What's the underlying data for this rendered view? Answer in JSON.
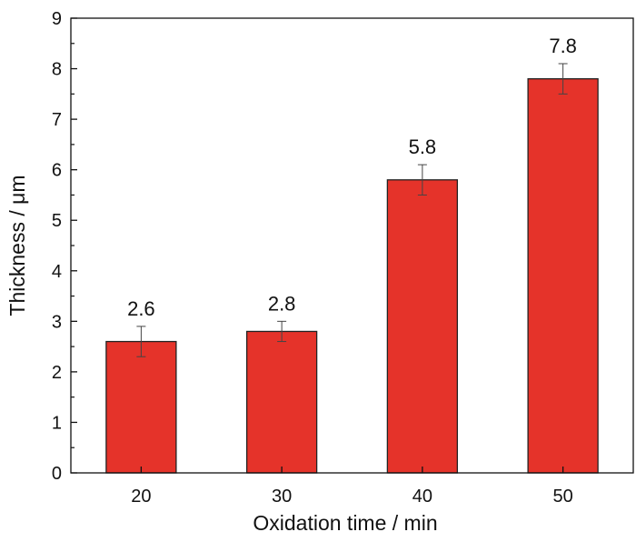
{
  "chart_data": {
    "type": "bar",
    "title": "",
    "xlabel": "Oxidation time / min",
    "ylabel": "Thickness / μm",
    "categories": [
      "20",
      "30",
      "40",
      "50"
    ],
    "values": [
      2.6,
      2.8,
      5.8,
      7.8
    ],
    "errors": [
      0.3,
      0.2,
      0.3,
      0.3
    ],
    "data_labels": [
      "2.6",
      "2.8",
      "5.8",
      "7.8"
    ],
    "ylim": [
      0,
      9
    ],
    "yticks": [
      "0",
      "1",
      "2",
      "3",
      "4",
      "5",
      "6",
      "7",
      "8",
      "9"
    ],
    "grid": false,
    "bar_color": "#e5332a"
  }
}
